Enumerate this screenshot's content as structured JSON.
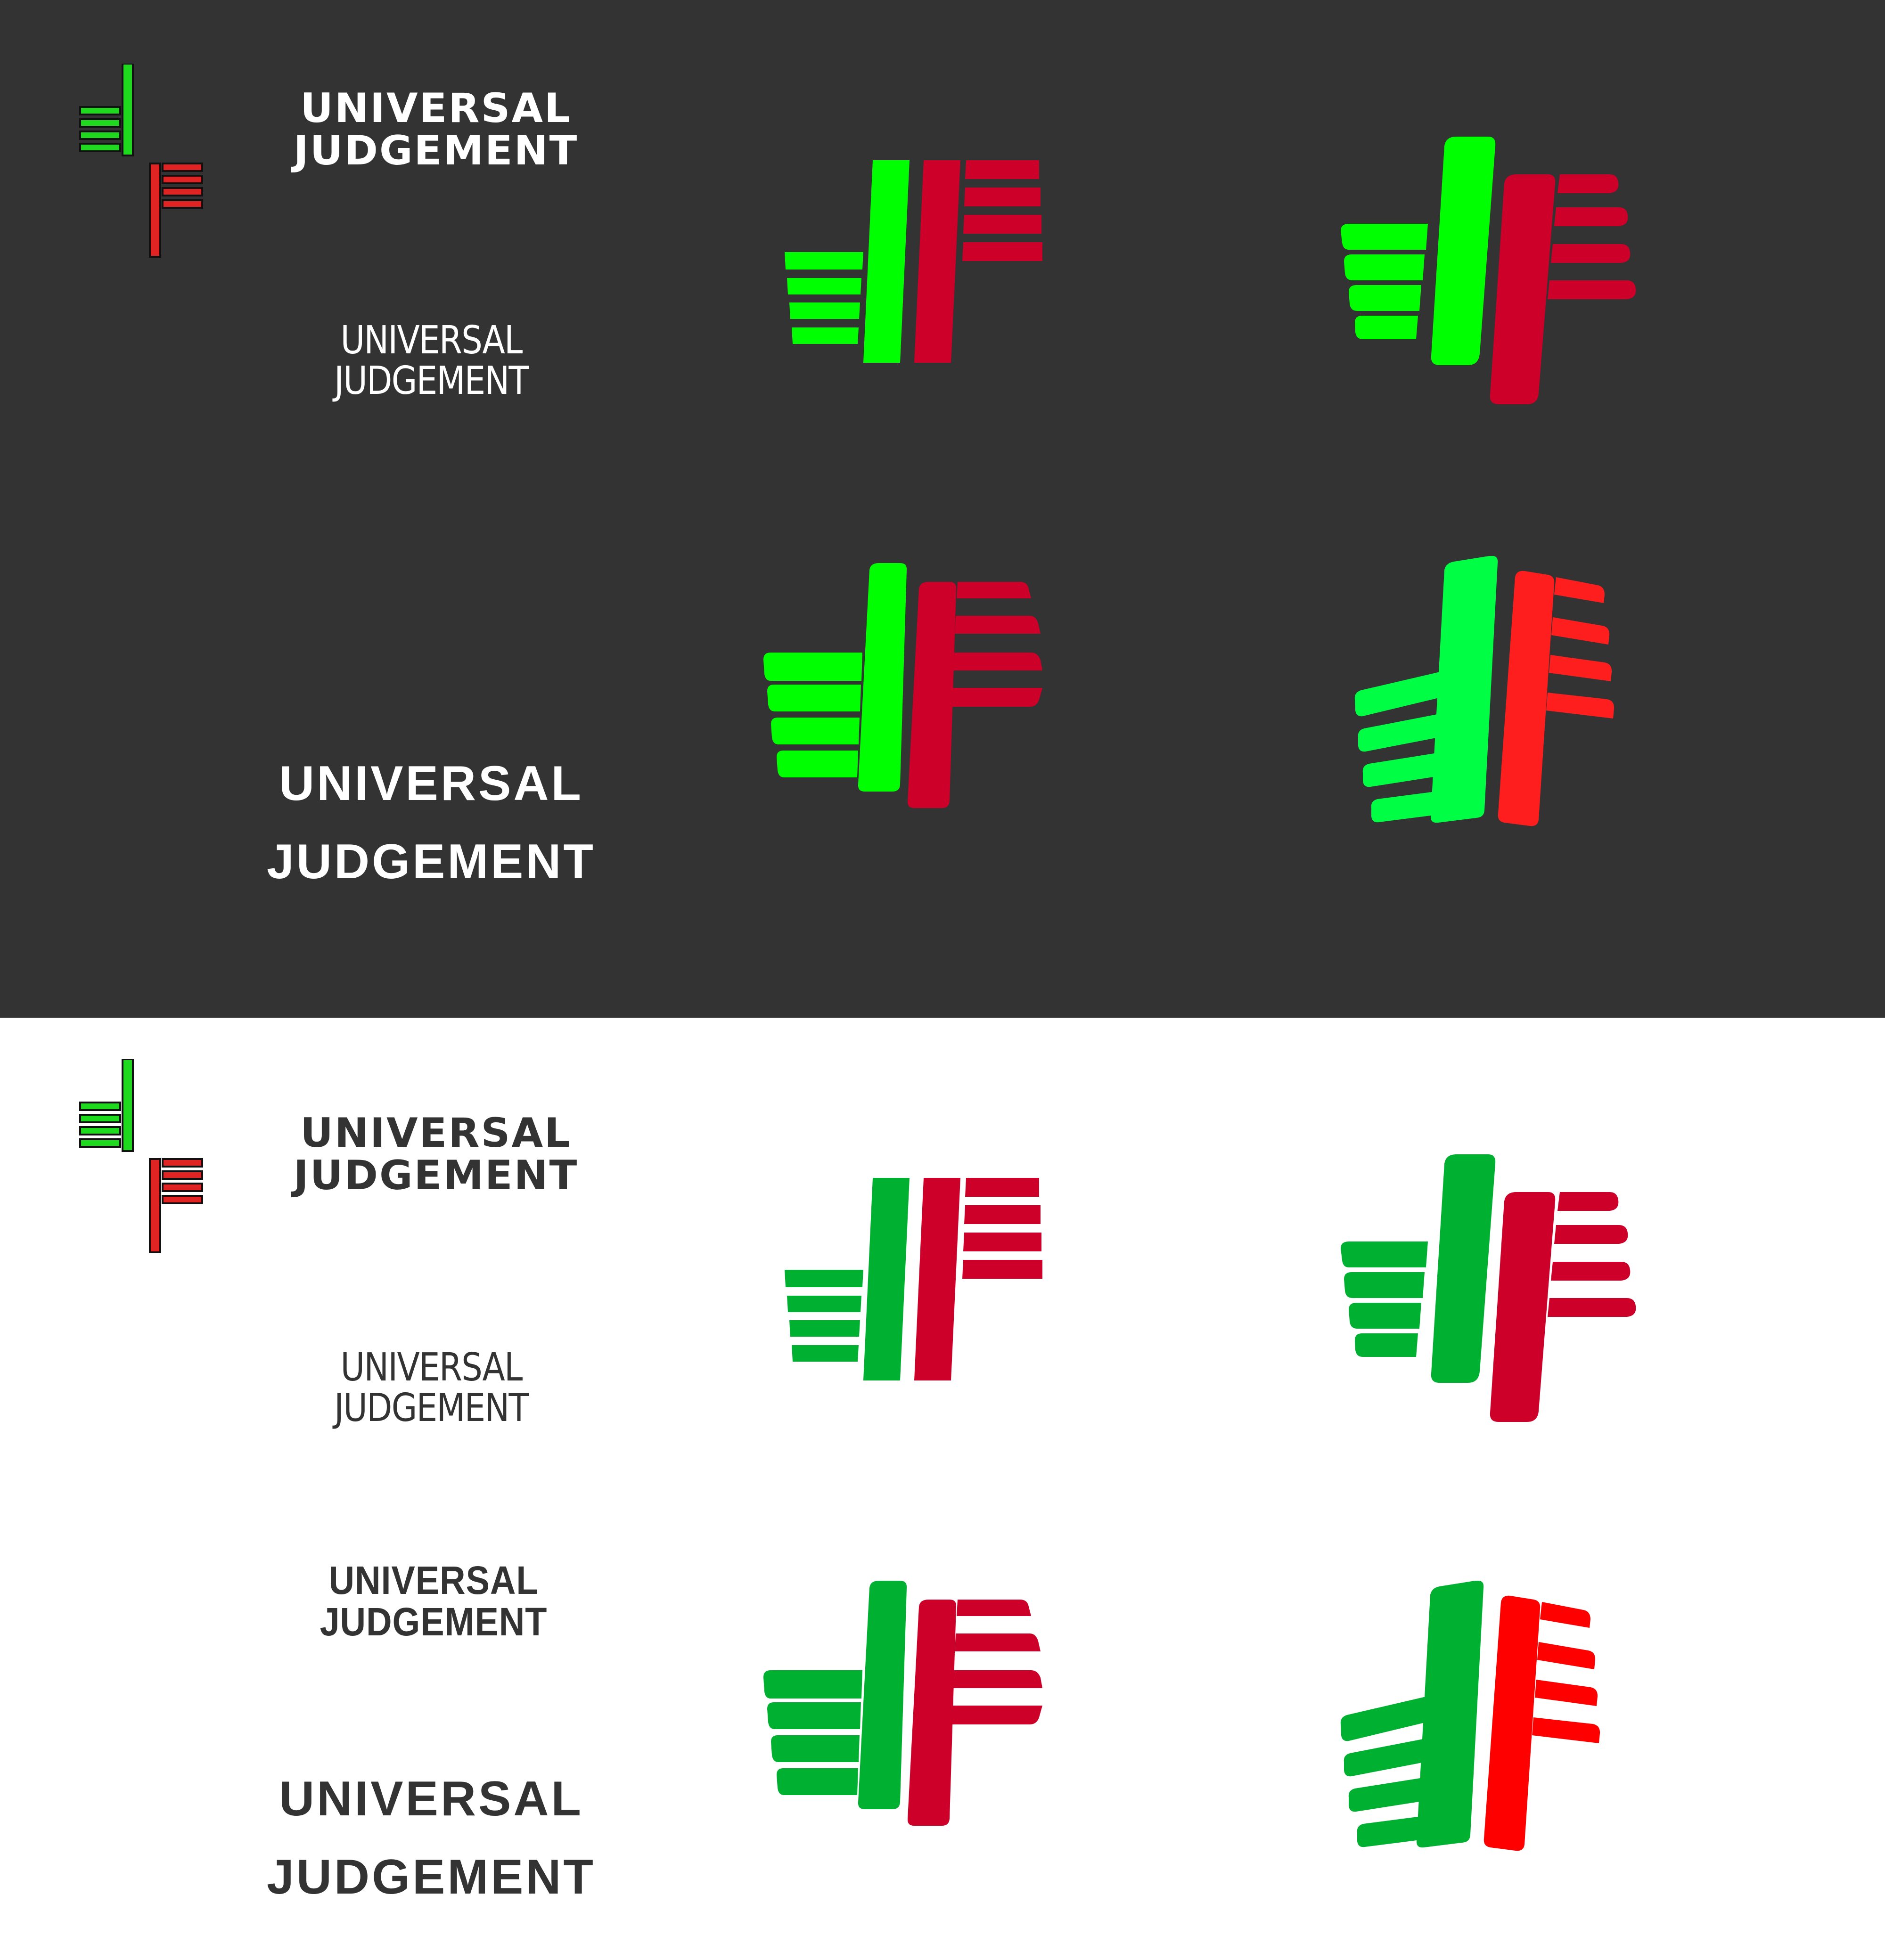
{
  "colors": {
    "dark_bg": "#333333",
    "light_bg": "#ffffff",
    "dark_text": "#333333",
    "light_text": "#ffffff",
    "bright_green": "#00ff00",
    "bright_green_alt": "#00ff44",
    "flat_green": "#00b030",
    "crimson": "#cc0029",
    "bright_red": "#ff1e1e",
    "pure_red": "#ff0000",
    "sketch_green": "#1ed91e",
    "sketch_red": "#e02424"
  },
  "dark_panel": {
    "wordmark_black": {
      "line1": "UNIVERSAL",
      "line2": "JUDGEMENT"
    },
    "wordmark_light": {
      "line1": "UNIVERSAL",
      "line2": "JUDGEMENT"
    },
    "wordmark_bold_large": {
      "line1": "UNIVERSAL",
      "line2": "JUDGEMENT"
    }
  },
  "light_panel": {
    "wordmark_black": {
      "line1": "UNIVERSAL",
      "line2": "JUDGEMENT"
    },
    "wordmark_light": {
      "line1": "UNIVERSAL",
      "line2": "JUDGEMENT"
    },
    "wordmark_semibold": {
      "line1": "UNIVERSAL",
      "line2": "JUDGEMENT"
    },
    "wordmark_bold_large": {
      "line1": "UNIVERSAL",
      "line2": "JUDGEMENT"
    }
  },
  "logo_icons": [
    "sketch-thumbs-icon",
    "square-thumbs-icon",
    "rounded-thumbs-icon",
    "soft-thumbs-icon",
    "angled-thumbs-icon"
  ]
}
